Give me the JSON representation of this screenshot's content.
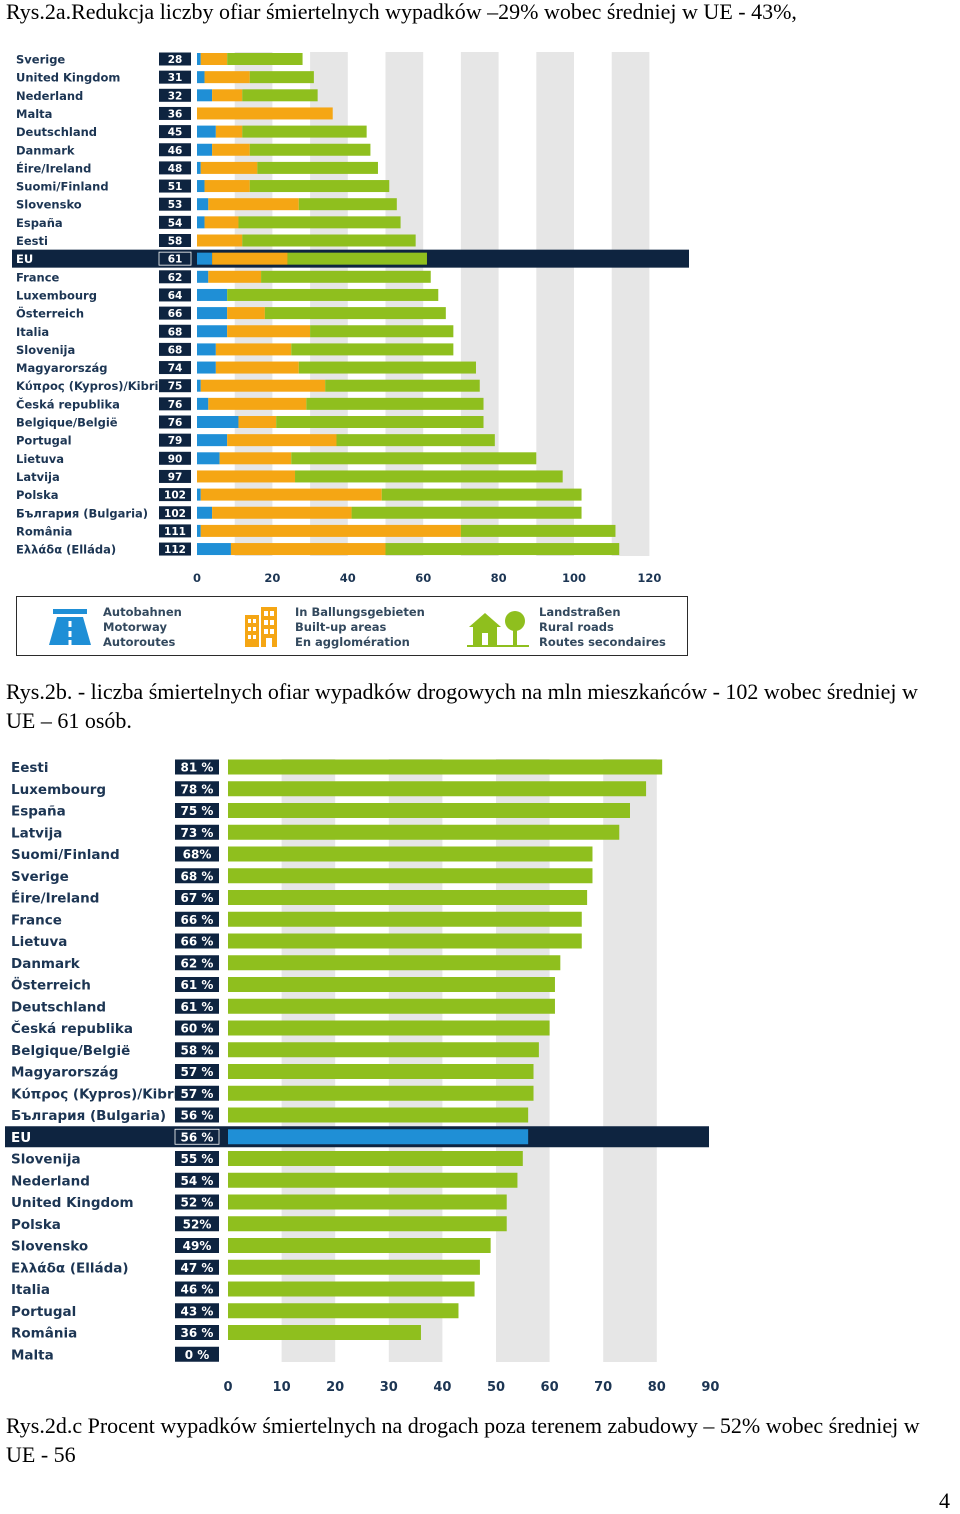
{
  "captions": {
    "fig_a": "Rys.2a.Redukcja liczby ofiar śmiertelnych wypadków –29% wobec średniej w UE - 43%,",
    "fig_b": "Rys.2b. - liczba śmiertelnych ofiar wypadków drogowych na mln mieszkańców - 102 wobec średniej w UE – 61 osób.",
    "fig_d": "Rys.2d.c Procent wypadków śmiertelnych na drogach poza terenem zabudowy – 52% wobec średniej w UE - 56"
  },
  "page_number": "4",
  "legend": {
    "motorway": [
      "Autobahnen",
      "Motorway",
      "Autoroutes"
    ],
    "built_up": [
      "In Ballungsgebieten",
      "Built-up areas",
      "En agglomération"
    ],
    "rural": [
      "Landstraßen",
      "Rural roads",
      "Routes secondaires"
    ]
  },
  "colors": {
    "motorway": "#1f8fd6",
    "built_up": "#f5a614",
    "rural": "#8fbf1e",
    "eu_row": "#0e2440",
    "label_box": "#0e2440",
    "label_text": "#1c3553",
    "grid_band": "#e6e6e6"
  },
  "chart_data": [
    {
      "type": "bar",
      "stacked": true,
      "orientation": "horizontal",
      "title": "",
      "xlabel": "",
      "ylabel": "",
      "xlim": [
        0,
        130
      ],
      "x_ticks": [
        "0",
        "20",
        "40",
        "60",
        "80",
        "100",
        "120"
      ],
      "highlight_category": "EU",
      "categories": [
        "Sverige",
        "United Kingdom",
        "Nederland",
        "Malta",
        "Deutschland",
        "Danmark",
        "Éire/Ireland",
        "Suomi/Finland",
        "Slovensko",
        "España",
        "Eesti",
        "EU",
        "France",
        "Luxembourg",
        "Österreich",
        "Italia",
        "Slovenija",
        "Magyarország",
        "Κύπρος (Kypros)/Kibris",
        "Česká republika",
        "Belgique/België",
        "Portugal",
        "Lietuva",
        "Latvija",
        "Polska",
        "България (Bulgaria)",
        "România",
        "Ελλάδα (Elláda)"
      ],
      "totals": [
        "28",
        "31",
        "32",
        "36",
        "45",
        "46",
        "48",
        "51",
        "53",
        "54",
        "58",
        "61",
        "62",
        "64",
        "66",
        "68",
        "68",
        "74",
        "75",
        "76",
        "76",
        "79",
        "90",
        "97",
        "102",
        "102",
        "111",
        "112"
      ],
      "series": [
        {
          "name": "Motorway",
          "values": [
            1,
            2,
            4,
            0,
            5,
            4,
            1,
            2,
            3,
            2,
            0,
            4,
            3,
            8,
            8,
            8,
            5,
            5,
            1,
            3,
            11,
            8,
            6,
            0,
            1,
            4,
            1,
            9
          ]
        },
        {
          "name": "Built-up areas",
          "values": [
            7,
            12,
            8,
            36,
            7,
            10,
            15,
            12,
            24,
            9,
            12,
            20,
            14,
            0,
            10,
            22,
            20,
            22,
            33,
            26,
            10,
            29,
            19,
            26,
            48,
            37,
            69,
            41
          ]
        },
        {
          "name": "Rural roads",
          "values": [
            20,
            17,
            20,
            0,
            33,
            32,
            32,
            37,
            26,
            43,
            46,
            37,
            45,
            56,
            48,
            38,
            43,
            47,
            41,
            47,
            55,
            42,
            65,
            71,
            53,
            61,
            41,
            62
          ]
        }
      ]
    },
    {
      "type": "bar",
      "orientation": "horizontal",
      "title": "",
      "xlabel": "",
      "ylabel": "",
      "xlim": [
        0,
        90
      ],
      "x_ticks": [
        "0",
        "10",
        "20",
        "30",
        "40",
        "50",
        "60",
        "70",
        "80",
        "90"
      ],
      "highlight_category": "EU",
      "categories": [
        "Eesti",
        "Luxembourg",
        "España",
        "Latvija",
        "Suomi/Finland",
        "Sverige",
        "Éire/Ireland",
        "France",
        "Lietuva",
        "Danmark",
        "Österreich",
        "Deutschland",
        "Česká republika",
        "Belgique/België",
        "Magyarország",
        "Κύπρος (Kypros)/Kibris",
        "България (Bulgaria)",
        "EU",
        "Slovenija",
        "Nederland",
        "United Kingdom",
        "Polska",
        "Slovensko",
        "Ελλάδα (Elláda)",
        "Italia",
        "Portugal",
        "România",
        "Malta"
      ],
      "value_labels": [
        "81 %",
        "78 %",
        "75 %",
        "73 %",
        "68%",
        "68 %",
        "67 %",
        "66 %",
        "66 %",
        "62 %",
        "61 %",
        "61 %",
        "60 %",
        "58 %",
        "57 %",
        "57 %",
        "56 %",
        "56 %",
        "55 %",
        "54 %",
        "52 %",
        "52%",
        "49%",
        "47 %",
        "46 %",
        "43 %",
        "36 %",
        "0 %"
      ],
      "values": [
        81,
        78,
        75,
        73,
        68,
        68,
        67,
        66,
        66,
        62,
        61,
        61,
        60,
        58,
        57,
        57,
        56,
        56,
        55,
        54,
        52,
        52,
        49,
        47,
        46,
        43,
        36,
        0
      ]
    }
  ]
}
